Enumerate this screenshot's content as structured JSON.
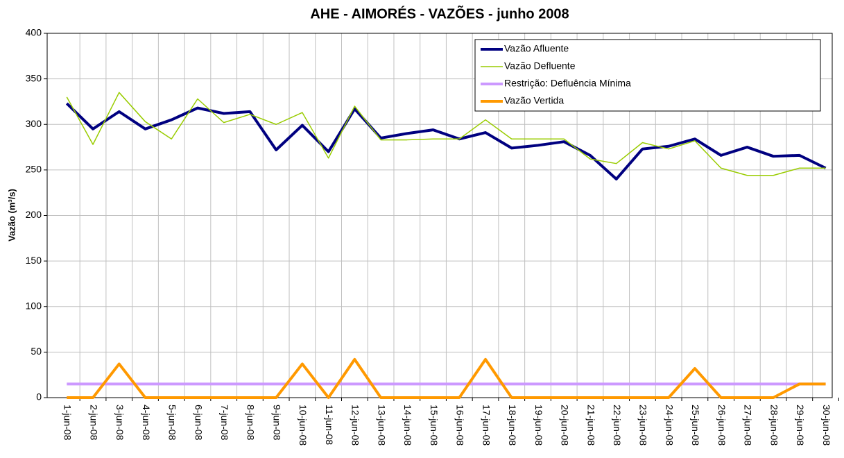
{
  "chart_data": {
    "type": "line",
    "title": "AHE - AIMORÉS - VAZÕES - junho 2008",
    "y_label": "Vazão (m³/s)",
    "categories": [
      "1-jun-08",
      "2-jun-08",
      "3-jun-08",
      "4-jun-08",
      "5-jun-08",
      "6-jun-08",
      "7-jun-08",
      "8-jun-08",
      "9-jun-08",
      "10-jun-08",
      "11-jun-08",
      "12-jun-08",
      "13-jun-08",
      "14-jun-08",
      "15-jun-08",
      "16-jun-08",
      "17-jun-08",
      "18-jun-08",
      "19-jun-08",
      "20-jun-08",
      "21-jun-08",
      "22-jun-08",
      "23-jun-08",
      "24-jun-08",
      "25-jun-08",
      "26-jun-08",
      "27-jun-08",
      "28-jun-08",
      "29-jun-08",
      "30-jun-08"
    ],
    "series": [
      {
        "name": "Vazão Afluente",
        "color": "#000080",
        "values": [
          323,
          295,
          314,
          295,
          305,
          318,
          312,
          314,
          272,
          299,
          270,
          317,
          285,
          290,
          294,
          284,
          291,
          274,
          277,
          281,
          266,
          240,
          273,
          276,
          284,
          266,
          275,
          265,
          266,
          252
        ]
      },
      {
        "name": "Vazão Defluente",
        "color": "#99cc00",
        "values": [
          330,
          278,
          335,
          303,
          284,
          328,
          302,
          311,
          300,
          313,
          263,
          320,
          283,
          283,
          284,
          284,
          305,
          284,
          284,
          284,
          262,
          257,
          280,
          273,
          282,
          252,
          244,
          244,
          252,
          252
        ]
      },
      {
        "name": "Restrição: Defluência Mínima",
        "color": "#cc99ff",
        "values": [
          15,
          15,
          15,
          15,
          15,
          15,
          15,
          15,
          15,
          15,
          15,
          15,
          15,
          15,
          15,
          15,
          15,
          15,
          15,
          15,
          15,
          15,
          15,
          15,
          15,
          15,
          15,
          15,
          15,
          15
        ]
      },
      {
        "name": "Vazão Vertida",
        "color": "#ff9900",
        "values": [
          0,
          0,
          37,
          0,
          0,
          0,
          0,
          0,
          0,
          37,
          0,
          42,
          0,
          0,
          0,
          0,
          42,
          0,
          0,
          0,
          0,
          0,
          0,
          0,
          32,
          0,
          0,
          0,
          15,
          15
        ]
      }
    ],
    "ylim": [
      0,
      400
    ],
    "yticks": [
      0,
      50,
      100,
      150,
      200,
      250,
      300,
      350,
      400
    ],
    "grid": true,
    "legend": "upper-right"
  }
}
